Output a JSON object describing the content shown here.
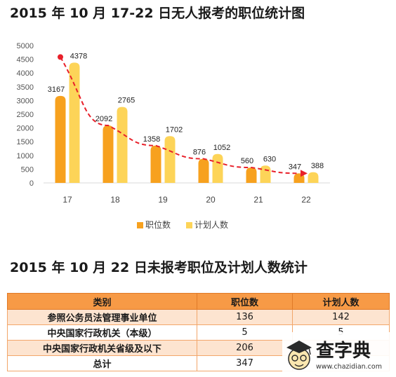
{
  "title1": "2015 年 10 月 17-22 日无人报考的职位统计图",
  "title2": "2015 年 10 月 22 日未报考职位及计划人数统计",
  "chart_data": {
    "type": "bar",
    "title": "2015 年 10 月 17-22 日无人报考的职位统计图",
    "categories": [
      "17",
      "18",
      "19",
      "20",
      "21",
      "22"
    ],
    "series": [
      {
        "name": "职位数",
        "values": [
          3167,
          2092,
          1358,
          876,
          560,
          347
        ],
        "color": "#f7a11e"
      },
      {
        "name": "计划人数",
        "values": [
          4378,
          2765,
          1702,
          1052,
          630,
          388
        ],
        "color": "#fdd458"
      }
    ],
    "yticks": [
      0,
      500,
      1000,
      1500,
      2000,
      2500,
      3000,
      3500,
      4000,
      4500,
      5000
    ],
    "ylim": [
      0,
      5000
    ],
    "legend_position": "bottom",
    "trend_line": {
      "style": "dashed",
      "color": "#e8202a",
      "direction": "decreasing"
    }
  },
  "table": {
    "headers": [
      "类别",
      "职位数",
      "计划人数"
    ],
    "rows": [
      [
        "参照公务员法管理事业单位",
        "136",
        "142"
      ],
      [
        "中央国家行政机关（本级）",
        "5",
        "5"
      ],
      [
        "中央国家行政机关省级及以下",
        "206",
        ""
      ],
      [
        "总计",
        "347",
        ""
      ]
    ]
  },
  "watermark": {
    "brand": "查字典",
    "url": "www.chazidian.com"
  }
}
